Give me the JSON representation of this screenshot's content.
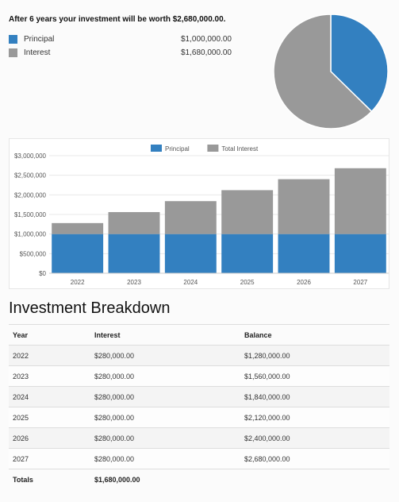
{
  "summary": {
    "headline": "After 6 years your investment will be worth $2,680,000.00.",
    "items": [
      {
        "label": "Principal",
        "value": "$1,000,000.00",
        "color": "#3380c0"
      },
      {
        "label": "Interest",
        "value": "$1,680,000.00",
        "color": "#999999"
      }
    ]
  },
  "chart_data": [
    {
      "type": "pie",
      "labels": [
        "Principal",
        "Interest"
      ],
      "values": [
        1000000,
        1680000
      ],
      "colors": [
        "#3380c0",
        "#999999"
      ]
    },
    {
      "type": "bar",
      "stacked": true,
      "categories": [
        "2022",
        "2023",
        "2024",
        "2025",
        "2026",
        "2027"
      ],
      "series": [
        {
          "name": "Principal",
          "values": [
            1000000,
            1000000,
            1000000,
            1000000,
            1000000,
            1000000
          ],
          "color": "#3380c0"
        },
        {
          "name": "Total Interest",
          "values": [
            280000,
            560000,
            840000,
            1120000,
            1400000,
            1680000
          ],
          "color": "#999999"
        }
      ],
      "ylim": [
        0,
        3000000
      ],
      "yticks": [
        {
          "value": 0,
          "label": "$0"
        },
        {
          "value": 500000,
          "label": "$500,000"
        },
        {
          "value": 1000000,
          "label": "$1,000,000"
        },
        {
          "value": 1500000,
          "label": "$1,500,000"
        },
        {
          "value": 2000000,
          "label": "$2,000,000"
        },
        {
          "value": 2500000,
          "label": "$2,500,000"
        },
        {
          "value": 3000000,
          "label": "$3,000,000"
        }
      ],
      "legend_position": "top",
      "grid": true
    }
  ],
  "breakdown": {
    "title": "Investment Breakdown",
    "headers": {
      "year": "Year",
      "interest": "Interest",
      "balance": "Balance"
    },
    "rows": [
      {
        "year": "2022",
        "interest": "$280,000.00",
        "balance": "$1,280,000.00"
      },
      {
        "year": "2023",
        "interest": "$280,000.00",
        "balance": "$1,560,000.00"
      },
      {
        "year": "2024",
        "interest": "$280,000.00",
        "balance": "$1,840,000.00"
      },
      {
        "year": "2025",
        "interest": "$280,000.00",
        "balance": "$2,120,000.00"
      },
      {
        "year": "2026",
        "interest": "$280,000.00",
        "balance": "$2,400,000.00"
      },
      {
        "year": "2027",
        "interest": "$280,000.00",
        "balance": "$2,680,000.00"
      }
    ],
    "totals": {
      "label": "Totals",
      "interest": "$1,680,000.00"
    }
  }
}
